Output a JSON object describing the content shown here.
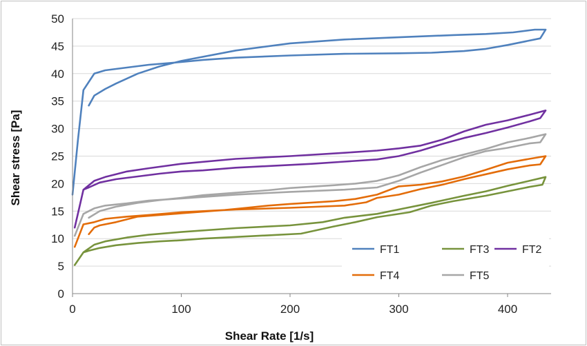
{
  "chart_data": {
    "type": "line",
    "xlabel": "Shear Rate [1/s]",
    "ylabel": "Shear stress  [Pa]",
    "xlim": [
      0,
      440
    ],
    "ylim": [
      0,
      50
    ],
    "x_ticks": [
      "0",
      "100",
      "200",
      "300",
      "400"
    ],
    "y_ticks": [
      "0",
      "5",
      "10",
      "15",
      "20",
      "25",
      "30",
      "35",
      "40",
      "45",
      "50"
    ],
    "grid": "horizontal",
    "legend_position": "bottom-right",
    "series": [
      {
        "name": "FT1",
        "color": "#4f81bd",
        "points": [
          [
            0,
            18
          ],
          [
            5,
            28
          ],
          [
            10,
            37
          ],
          [
            20,
            40
          ],
          [
            30,
            40.6
          ],
          [
            50,
            41.1
          ],
          [
            70,
            41.6
          ],
          [
            100,
            42.1
          ],
          [
            120,
            42.5
          ],
          [
            150,
            42.9
          ],
          [
            200,
            43.3
          ],
          [
            250,
            43.6
          ],
          [
            300,
            43.7
          ],
          [
            330,
            43.8
          ],
          [
            360,
            44.1
          ],
          [
            380,
            44.5
          ],
          [
            400,
            45.2
          ],
          [
            420,
            46
          ],
          [
            430,
            46.4
          ],
          [
            435,
            48
          ],
          [
            425,
            48
          ],
          [
            405,
            47.5
          ],
          [
            380,
            47.2
          ],
          [
            350,
            47
          ],
          [
            300,
            46.6
          ],
          [
            250,
            46.2
          ],
          [
            200,
            45.5
          ],
          [
            150,
            44.2
          ],
          [
            100,
            42.3
          ],
          [
            80,
            41.3
          ],
          [
            60,
            40
          ],
          [
            40,
            38.2
          ],
          [
            30,
            37.2
          ],
          [
            20,
            36
          ],
          [
            15,
            34.2
          ]
        ]
      },
      {
        "name": "FT3",
        "color": "#77933c",
        "points": [
          [
            2,
            5.2
          ],
          [
            10,
            7.5
          ],
          [
            20,
            8.9
          ],
          [
            30,
            9.5
          ],
          [
            50,
            10.2
          ],
          [
            70,
            10.7
          ],
          [
            100,
            11.2
          ],
          [
            150,
            11.9
          ],
          [
            200,
            12.4
          ],
          [
            230,
            13
          ],
          [
            250,
            13.8
          ],
          [
            280,
            14.5
          ],
          [
            300,
            15.3
          ],
          [
            330,
            16.5
          ],
          [
            360,
            17.8
          ],
          [
            380,
            18.6
          ],
          [
            400,
            19.6
          ],
          [
            420,
            20.5
          ],
          [
            435,
            21.2
          ],
          [
            432,
            19.8
          ],
          [
            420,
            19.4
          ],
          [
            400,
            18.6
          ],
          [
            380,
            17.8
          ],
          [
            350,
            16.8
          ],
          [
            330,
            16
          ],
          [
            310,
            14.8
          ],
          [
            280,
            13.9
          ],
          [
            260,
            13
          ],
          [
            240,
            12.2
          ],
          [
            210,
            10.9
          ],
          [
            180,
            10.6
          ],
          [
            150,
            10.3
          ],
          [
            120,
            10
          ],
          [
            100,
            9.7
          ],
          [
            80,
            9.5
          ],
          [
            60,
            9.2
          ],
          [
            40,
            8.8
          ],
          [
            25,
            8.3
          ],
          [
            15,
            7.8
          ],
          [
            10,
            7.5
          ]
        ]
      },
      {
        "name": "FT2",
        "color": "#7030a0",
        "points": [
          [
            2,
            12
          ],
          [
            10,
            18.9
          ],
          [
            20,
            20.5
          ],
          [
            30,
            21.2
          ],
          [
            50,
            22.2
          ],
          [
            70,
            22.8
          ],
          [
            100,
            23.6
          ],
          [
            150,
            24.5
          ],
          [
            200,
            25
          ],
          [
            250,
            25.6
          ],
          [
            280,
            26
          ],
          [
            300,
            26.4
          ],
          [
            320,
            26.9
          ],
          [
            340,
            28
          ],
          [
            360,
            29.5
          ],
          [
            380,
            30.7
          ],
          [
            400,
            31.5
          ],
          [
            420,
            32.5
          ],
          [
            435,
            33.3
          ],
          [
            430,
            31.9
          ],
          [
            420,
            31.3
          ],
          [
            400,
            30.2
          ],
          [
            380,
            29.2
          ],
          [
            360,
            28.3
          ],
          [
            340,
            27.2
          ],
          [
            320,
            26
          ],
          [
            300,
            25
          ],
          [
            280,
            24.4
          ],
          [
            250,
            24
          ],
          [
            220,
            23.6
          ],
          [
            200,
            23.4
          ],
          [
            170,
            23.1
          ],
          [
            150,
            22.9
          ],
          [
            120,
            22.4
          ],
          [
            100,
            22.2
          ],
          [
            80,
            21.8
          ],
          [
            60,
            21.3
          ],
          [
            40,
            20.8
          ],
          [
            25,
            20.2
          ],
          [
            15,
            19.3
          ],
          [
            10,
            18.9
          ]
        ]
      },
      {
        "name": "FT4",
        "color": "#e36c09",
        "points": [
          [
            2,
            8.5
          ],
          [
            10,
            12.6
          ],
          [
            20,
            13
          ],
          [
            30,
            13.6
          ],
          [
            50,
            14
          ],
          [
            70,
            14.3
          ],
          [
            100,
            14.8
          ],
          [
            150,
            15.3
          ],
          [
            200,
            15.6
          ],
          [
            250,
            16
          ],
          [
            270,
            16.6
          ],
          [
            280,
            17.4
          ],
          [
            300,
            18
          ],
          [
            320,
            19
          ],
          [
            340,
            19.8
          ],
          [
            360,
            20.8
          ],
          [
            380,
            21.7
          ],
          [
            400,
            22.6
          ],
          [
            420,
            23.3
          ],
          [
            430,
            23.5
          ],
          [
            435,
            25
          ],
          [
            420,
            24.5
          ],
          [
            400,
            23.8
          ],
          [
            380,
            22.5
          ],
          [
            360,
            21.3
          ],
          [
            340,
            20.4
          ],
          [
            320,
            19.8
          ],
          [
            300,
            19.5
          ],
          [
            280,
            18
          ],
          [
            260,
            17.2
          ],
          [
            240,
            16.8
          ],
          [
            200,
            16.3
          ],
          [
            180,
            16
          ],
          [
            160,
            15.6
          ],
          [
            140,
            15.2
          ],
          [
            120,
            14.9
          ],
          [
            100,
            14.6
          ],
          [
            80,
            14.3
          ],
          [
            60,
            14
          ],
          [
            40,
            13
          ],
          [
            25,
            12.4
          ],
          [
            20,
            12
          ],
          [
            15,
            10.8
          ]
        ]
      },
      {
        "name": "FT5",
        "color": "#a6a6a6",
        "points": [
          [
            2,
            10.5
          ],
          [
            10,
            14.5
          ],
          [
            20,
            15.5
          ],
          [
            30,
            16
          ],
          [
            50,
            16.4
          ],
          [
            70,
            16.9
          ],
          [
            100,
            17.3
          ],
          [
            150,
            18
          ],
          [
            200,
            18.5
          ],
          [
            250,
            18.9
          ],
          [
            280,
            19.3
          ],
          [
            300,
            20.5
          ],
          [
            320,
            22
          ],
          [
            340,
            23.4
          ],
          [
            360,
            24.8
          ],
          [
            380,
            25.9
          ],
          [
            400,
            26.5
          ],
          [
            420,
            27.3
          ],
          [
            430,
            27.5
          ],
          [
            435,
            29
          ],
          [
            420,
            28.3
          ],
          [
            400,
            27.5
          ],
          [
            380,
            26.3
          ],
          [
            360,
            25.3
          ],
          [
            340,
            24.3
          ],
          [
            320,
            23
          ],
          [
            300,
            21.5
          ],
          [
            280,
            20.5
          ],
          [
            260,
            20
          ],
          [
            240,
            19.7
          ],
          [
            200,
            19.2
          ],
          [
            180,
            18.8
          ],
          [
            160,
            18.5
          ],
          [
            140,
            18.2
          ],
          [
            120,
            17.9
          ],
          [
            100,
            17.4
          ],
          [
            80,
            17
          ],
          [
            60,
            16.5
          ],
          [
            40,
            15.8
          ],
          [
            25,
            15
          ],
          [
            15,
            13.8
          ]
        ]
      }
    ],
    "legend_rows": [
      [
        "FT1",
        "FT3",
        "FT2"
      ],
      [
        "FT4",
        "FT5"
      ]
    ],
    "colors": {
      "grid": "#d9d9d9",
      "axis": "#868686",
      "legend_bg": "#ffffff"
    }
  }
}
